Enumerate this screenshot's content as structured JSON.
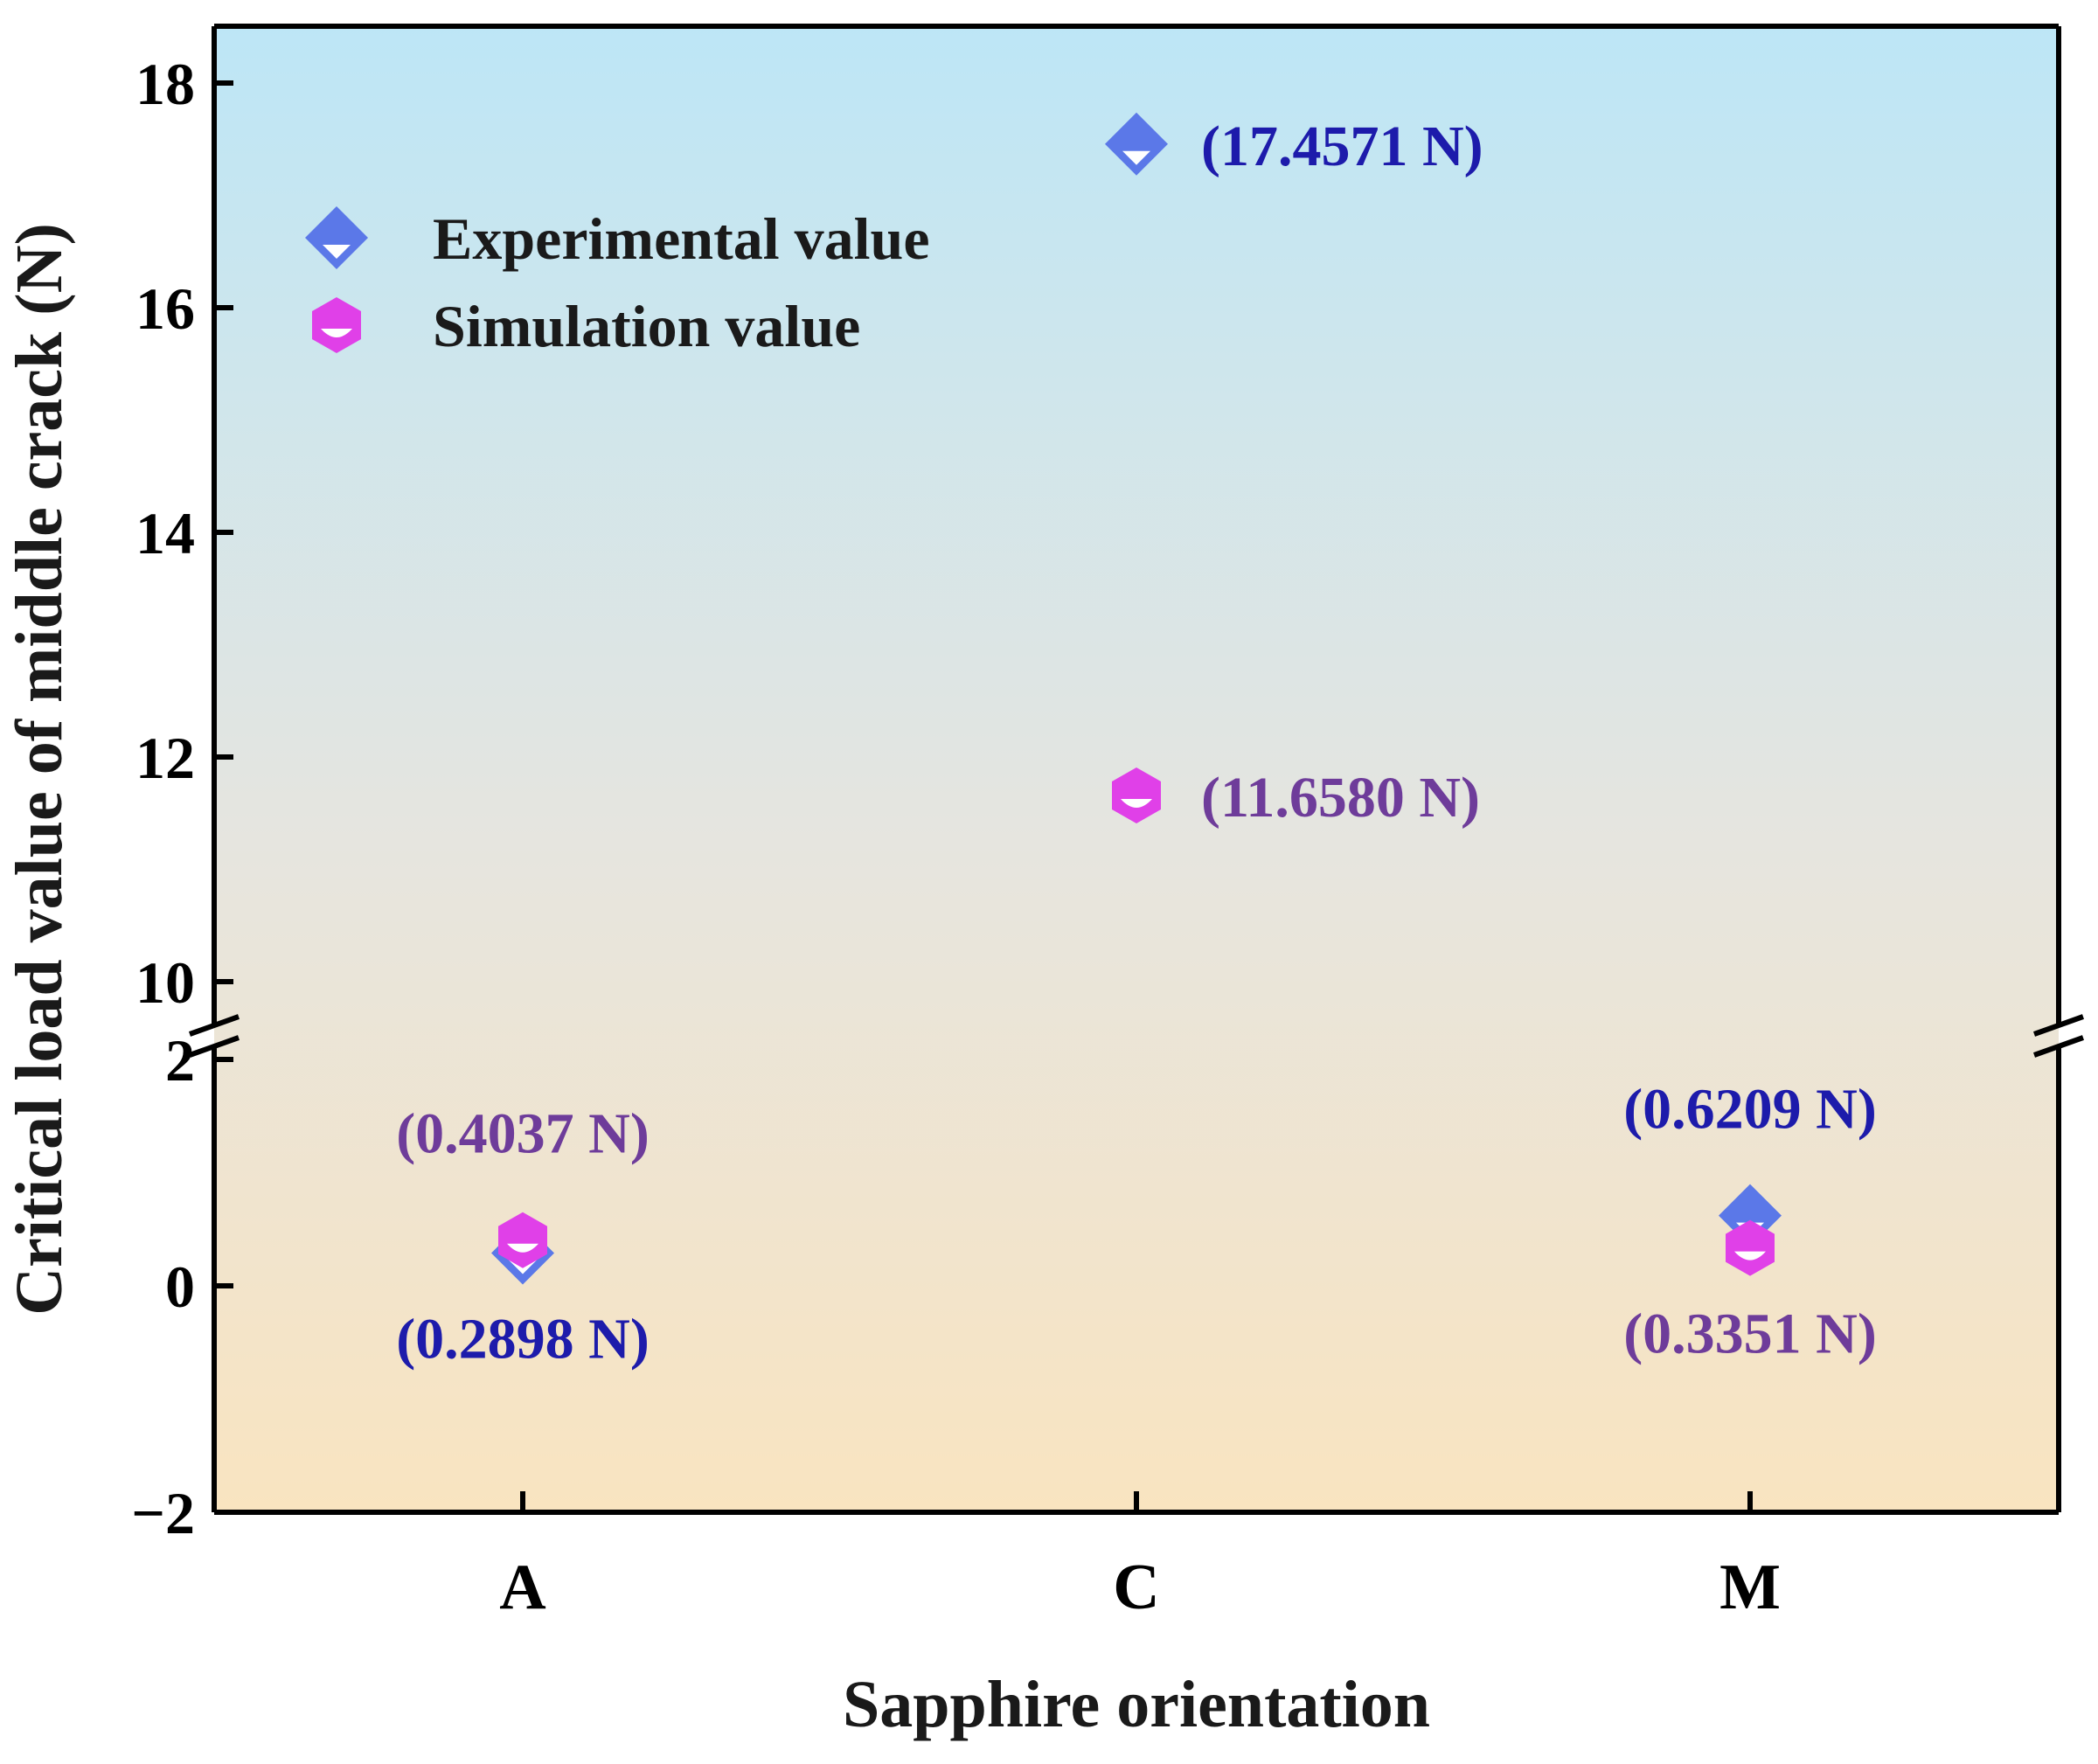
{
  "chart_data": {
    "type": "scatter",
    "title": "",
    "xlabel": "Sapphire orientation",
    "ylabel": "Critical load value of middle crack (N)",
    "categories": [
      "A",
      "C",
      "M"
    ],
    "axis_break": {
      "lower_range": [
        -2,
        2
      ],
      "upper_range": [
        10,
        18
      ],
      "lower_ticks": [
        -2,
        0,
        2
      ],
      "upper_ticks": [
        10,
        12,
        14,
        16,
        18
      ],
      "tick_labels": {
        "-2": "−2",
        "0": "0",
        "2": "2",
        "10": "10",
        "12": "12",
        "14": "14",
        "16": "16",
        "18": "18"
      }
    },
    "background_gradient": {
      "top": "#bde6f6",
      "middle": "#e6e5df",
      "bottom": "#f9e4c0"
    },
    "series": [
      {
        "name": "Experimental value",
        "marker": "diamond",
        "color": "#5b78e8",
        "label_color": "#1d1bab",
        "values": [
          0.2898,
          17.4571,
          0.6209
        ],
        "labels": [
          "(0.2898 N)",
          "(17.4571 N)",
          "(0.6209 N)"
        ],
        "label_positions": [
          "below",
          "right",
          "above"
        ]
      },
      {
        "name": "Simulation value",
        "marker": "hexagon",
        "color": "#e040e8",
        "label_color": "#6e3c9a",
        "values": [
          0.4037,
          11.658,
          0.3351
        ],
        "labels": [
          "(0.4037 N)",
          "(11.6580 N)",
          "(0.3351 N)"
        ],
        "label_positions": [
          "above",
          "right",
          "below"
        ]
      }
    ],
    "legend": {
      "position": "top-left"
    }
  }
}
